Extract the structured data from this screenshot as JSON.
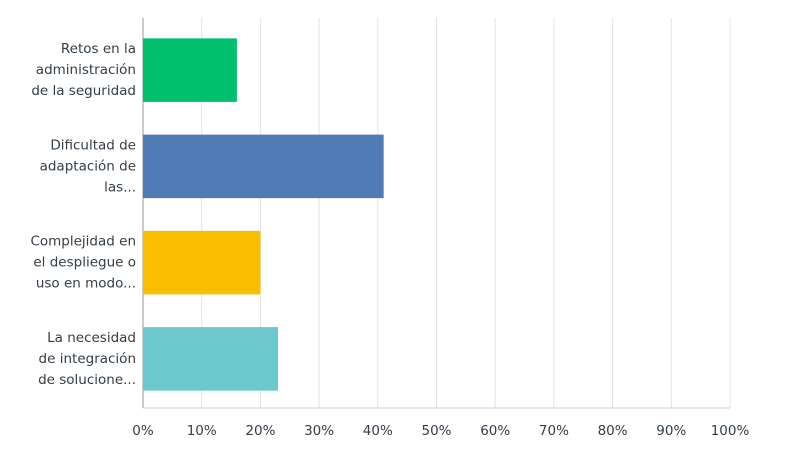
{
  "chart_data": {
    "type": "hbar",
    "categories": [
      "Retos en la\nadministración\nde la seguridad",
      "Dificultad de\nadaptación de\nlas...",
      "Complejidad en\nel despliegue o\nuso en modo...",
      "La necesidad\nde integración\nde solucione..."
    ],
    "values": [
      16,
      41,
      20,
      23
    ],
    "colors": [
      "#00bf6f",
      "#507cb6",
      "#f9be00",
      "#6bc8cd"
    ],
    "xlim": [
      0,
      100
    ],
    "xticks": [
      {
        "value": 0,
        "label": "0%"
      },
      {
        "value": 10,
        "label": "10%"
      },
      {
        "value": 20,
        "label": "20%"
      },
      {
        "value": 30,
        "label": "30%"
      },
      {
        "value": 40,
        "label": "40%"
      },
      {
        "value": 50,
        "label": "50%"
      },
      {
        "value": 60,
        "label": "60%"
      },
      {
        "value": 70,
        "label": "70%"
      },
      {
        "value": 80,
        "label": "80%"
      },
      {
        "value": 90,
        "label": "90%"
      },
      {
        "value": 100,
        "label": "100%"
      }
    ],
    "grid": true
  }
}
